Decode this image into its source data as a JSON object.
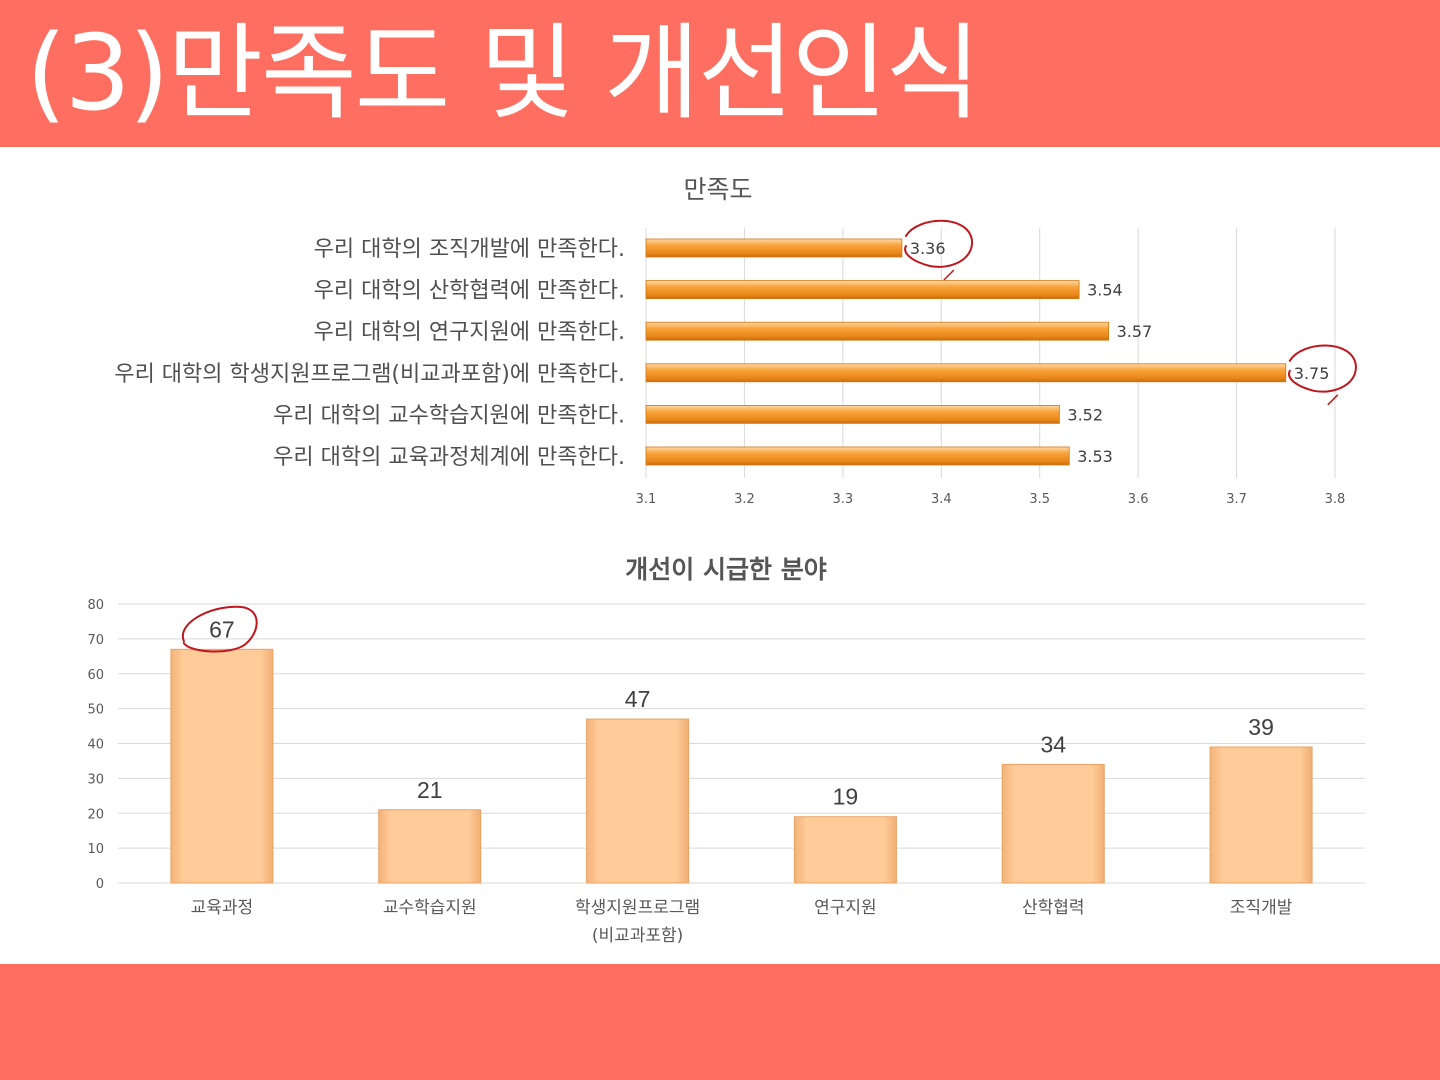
{
  "slide": {
    "title": "(3)만족도 및 개선인식"
  },
  "colors": {
    "band": "#ff6f61",
    "h_bar": "#f29a2e",
    "v_bar": "#ffc996",
    "circle": "#c0161d"
  },
  "chart_data": [
    {
      "type": "bar",
      "orientation": "horizontal",
      "title": "만족도",
      "categories": [
        "우리 대학의 조직개발에 만족한다.",
        "우리 대학의 산학협력에 만족한다.",
        "우리 대학의 연구지원에 만족한다.",
        "우리 대학의 학생지원프로그램(비교과포함)에 만족한다.",
        "우리 대학의 교수학습지원에 만족한다.",
        "우리 대학의 교육과정체계에 만족한다."
      ],
      "values": [
        3.36,
        3.54,
        3.57,
        3.75,
        3.52,
        3.53
      ],
      "value_labels": [
        "3.36",
        "3.54",
        "3.57",
        "3.75",
        "3.52",
        "3.53"
      ],
      "xlim": [
        3.1,
        3.8
      ],
      "ticks": [
        "3.1",
        "3.2",
        "3.3",
        "3.4",
        "3.5",
        "3.6",
        "3.7",
        "3.8"
      ],
      "grid": true,
      "highlighted": [
        "3.36",
        "3.75"
      ]
    },
    {
      "type": "bar",
      "orientation": "vertical",
      "title": "개선이 시급한 분야",
      "categories": [
        "교육과정",
        "교수학습지원",
        "학생지원프로그램\n(비교과포함)",
        "연구지원",
        "산학협력",
        "조직개발"
      ],
      "values": [
        67,
        21,
        47,
        19,
        34,
        39
      ],
      "value_labels": [
        "67",
        "21",
        "47",
        "19",
        "34",
        "39"
      ],
      "ylim": [
        0,
        80
      ],
      "ticks": [
        "0",
        "10",
        "20",
        "30",
        "40",
        "50",
        "60",
        "70",
        "80"
      ],
      "grid": true,
      "highlighted": [
        "67"
      ]
    }
  ]
}
